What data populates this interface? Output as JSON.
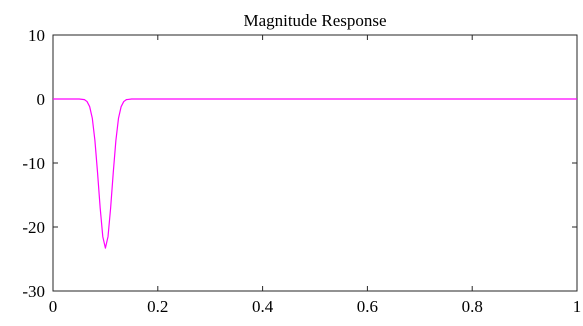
{
  "chart_data": {
    "type": "line",
    "title": "Magnitude Response",
    "xlabel": "",
    "ylabel": "",
    "xlim": [
      0,
      1
    ],
    "ylim": [
      -30,
      10
    ],
    "x_ticks": [
      "0",
      "0.2",
      "0.4",
      "0.6",
      "0.8",
      "1"
    ],
    "y_ticks": [
      "10",
      "0",
      "-10",
      "-20",
      "-30"
    ],
    "grid": false,
    "series": [
      {
        "color": "#ff00ff",
        "x": [
          0,
          0.05,
          0.06,
          0.065,
          0.07,
          0.075,
          0.08,
          0.085,
          0.09,
          0.095,
          0.1,
          0.105,
          0.11,
          0.115,
          0.12,
          0.125,
          0.13,
          0.135,
          0.14,
          0.15,
          0.2,
          0.4,
          0.6,
          0.8,
          1
        ],
        "y": [
          0,
          0,
          -0.1,
          -0.4,
          -1.2,
          -3,
          -6.5,
          -11.5,
          -17,
          -21.5,
          -23.3,
          -21.5,
          -17,
          -11.5,
          -6.5,
          -3,
          -1.2,
          -0.4,
          -0.1,
          0,
          0,
          0,
          0,
          0,
          0
        ]
      }
    ]
  }
}
